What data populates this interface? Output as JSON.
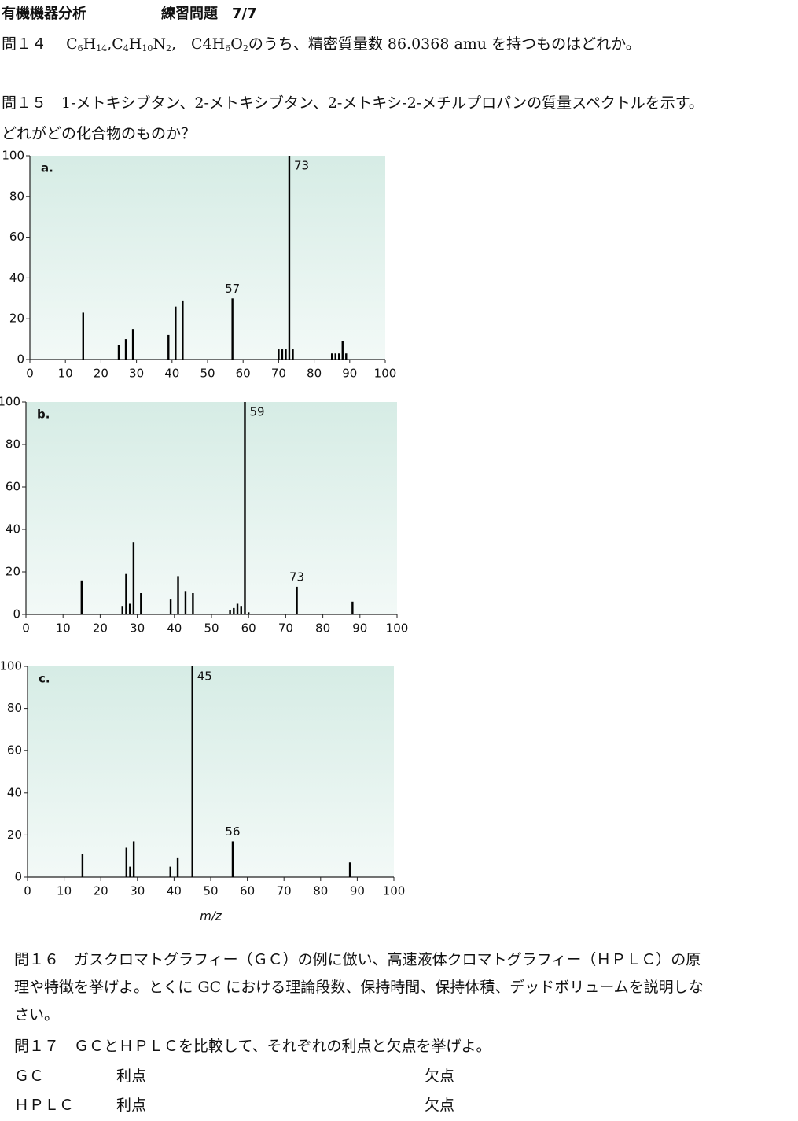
{
  "header": {
    "title": "有機機器分析",
    "subtitle": "練習問題　7/7"
  },
  "q14": {
    "label": "問１４　",
    "formulas": [
      [
        "C",
        "6",
        "H",
        "14"
      ],
      [
        "C",
        "4",
        "H",
        "10",
        "N",
        "2"
      ],
      [
        "C4H",
        "6",
        "O",
        "2"
      ]
    ],
    "separators": [
      ",",
      ",　"
    ],
    "text": "のうち、精密質量数 86.0368 amu を持つものはどれか。"
  },
  "q15": {
    "lines": [
      "問１５　1-メトキシブタン、2-メトキシブタン、2-メトキシ-2-メチルプロパンの質量スペクトルを示す。",
      "どれがどの化合物のものか？"
    ]
  },
  "q16": {
    "lines": [
      "問１６　ガスクロマトグラフィー（ＧＣ）の例に倣い、高速液体クロマトグラフィー（ＨＰＬＣ）の原",
      "理や特徴を挙げよ。とくに GC における理論段数、保持時間、保持体積、デッドボリュームを説明しな",
      "さい。"
    ]
  },
  "q17": {
    "text": "問１７　ＧＣとＨＰＬＣを比較して、それぞれの利点と欠点を挙げよ。",
    "rows": [
      {
        "name": "ＧＣ",
        "pro": "利点",
        "con": "欠点"
      },
      {
        "name": "ＨＰＬＣ",
        "pro": "利点",
        "con": "欠点"
      }
    ]
  },
  "chart_data": [
    {
      "type": "bar",
      "label": "a.",
      "color": "#000000",
      "background": "#d6ece5",
      "x": [
        15,
        25,
        27,
        29,
        39,
        41,
        43,
        57,
        70,
        71,
        72,
        73,
        74,
        85,
        86,
        87,
        88,
        89
      ],
      "values": [
        23,
        7,
        10,
        15,
        12,
        26,
        29,
        30,
        5,
        5,
        5,
        100,
        5,
        3,
        3,
        3,
        9,
        3
      ],
      "annotations": [
        73,
        57
      ],
      "xlim": [
        0,
        100
      ],
      "ylim": [
        0,
        100
      ],
      "xticks": [
        0,
        10,
        20,
        30,
        40,
        50,
        60,
        70,
        80,
        90,
        100
      ],
      "yticks": [
        0,
        20,
        40,
        60,
        80,
        100
      ]
    },
    {
      "type": "bar",
      "label": "b.",
      "color": "#000000",
      "background": "#d6ece5",
      "x": [
        15,
        26,
        27,
        28,
        29,
        31,
        39,
        41,
        43,
        45,
        55,
        56,
        57,
        58,
        59,
        60,
        73,
        88
      ],
      "values": [
        16,
        4,
        19,
        5,
        34,
        10,
        7,
        18,
        11,
        10,
        2,
        3,
        5,
        4,
        100,
        1,
        13,
        6
      ],
      "annotations": [
        59,
        73
      ],
      "xlim": [
        0,
        100
      ],
      "ylim": [
        0,
        100
      ],
      "xticks": [
        0,
        10,
        20,
        30,
        40,
        50,
        60,
        70,
        80,
        90,
        100
      ],
      "yticks": [
        0,
        20,
        40,
        60,
        80,
        100
      ]
    },
    {
      "type": "bar",
      "label": "c.",
      "color": "#000000",
      "background": "#d6ece5",
      "xlabel": "m/z",
      "x": [
        15,
        27,
        28,
        29,
        39,
        41,
        45,
        56,
        88
      ],
      "values": [
        11,
        14,
        5,
        17,
        5,
        9,
        100,
        17,
        7
      ],
      "annotations": [
        45,
        56
      ],
      "xlim": [
        0,
        100
      ],
      "ylim": [
        0,
        100
      ],
      "xticks": [
        0,
        10,
        20,
        30,
        40,
        50,
        60,
        70,
        80,
        90,
        100
      ],
      "yticks": [
        0,
        20,
        40,
        60,
        80,
        100
      ]
    }
  ]
}
